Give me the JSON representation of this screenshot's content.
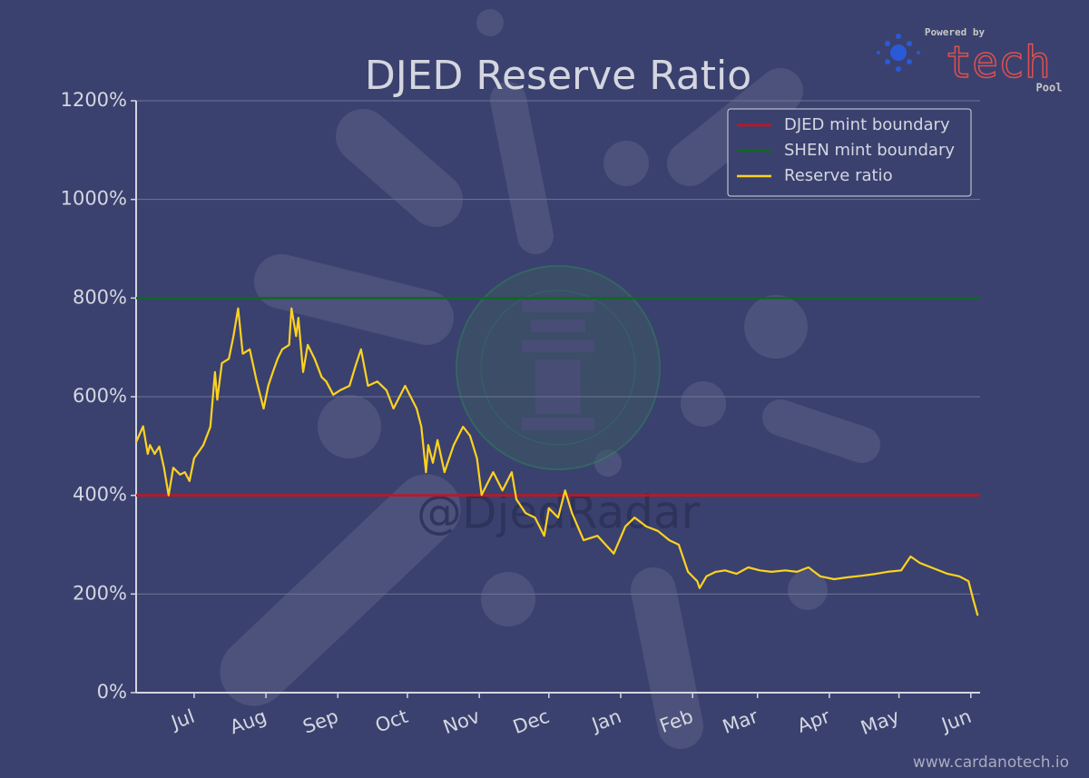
{
  "chart_data": {
    "type": "line",
    "title": "DJED Reserve Ratio",
    "xlim": [
      0,
      364
    ],
    "ylim": [
      0,
      1200
    ],
    "yticks": [
      {
        "value": 0,
        "label": "0%"
      },
      {
        "value": 200,
        "label": "200%"
      },
      {
        "value": 400,
        "label": "400%"
      },
      {
        "value": 600,
        "label": "600%"
      },
      {
        "value": 800,
        "label": "800%"
      },
      {
        "value": 1000,
        "label": "1000%"
      },
      {
        "value": 1200,
        "label": "1200%"
      }
    ],
    "xticks": [
      {
        "value": 25,
        "label": "Jul"
      },
      {
        "value": 56,
        "label": "Aug"
      },
      {
        "value": 87,
        "label": "Sep"
      },
      {
        "value": 117,
        "label": "Oct"
      },
      {
        "value": 148,
        "label": "Nov"
      },
      {
        "value": 178,
        "label": "Dec"
      },
      {
        "value": 209,
        "label": "Jan"
      },
      {
        "value": 240,
        "label": "Feb"
      },
      {
        "value": 268,
        "label": "Mar"
      },
      {
        "value": 299,
        "label": "Apr"
      },
      {
        "value": 329,
        "label": "May"
      },
      {
        "value": 360,
        "label": "Jun"
      }
    ],
    "grid": true,
    "legend": "upper right",
    "reference_lines": [
      {
        "name": "DJED mint boundary",
        "color": "#d0101a",
        "value": 400
      },
      {
        "name": "SHEN mint boundary",
        "color": "#0e6a1e",
        "value": 800
      }
    ],
    "series": [
      {
        "name": "Reserve ratio",
        "color": "#ffd21f",
        "x": [
          0,
          3,
          5,
          6,
          8,
          10,
          12,
          14,
          16,
          19,
          21,
          23,
          25,
          29,
          32,
          34,
          35,
          37,
          40,
          42,
          44,
          46,
          49,
          52,
          55,
          57,
          59,
          61,
          63,
          66,
          67,
          69,
          70,
          72,
          74,
          77,
          80,
          82,
          85,
          88,
          92,
          95,
          97,
          100,
          104,
          108,
          111,
          116,
          121,
          123,
          125,
          126,
          128,
          130,
          133,
          137,
          141,
          144,
          147,
          149,
          152,
          154,
          158,
          162,
          164,
          168,
          172,
          176,
          178,
          182,
          185,
          188,
          193,
          199,
          206,
          211,
          215,
          220,
          225,
          230,
          234,
          238,
          242,
          243,
          246,
          250,
          254,
          259,
          264,
          269,
          274,
          280,
          285,
          290,
          295,
          301,
          307,
          313,
          319,
          324,
          330,
          334,
          338,
          344,
          350,
          355,
          359,
          361,
          363
        ],
        "values": [
          508,
          540,
          484,
          502,
          484,
          499,
          456,
          400,
          456,
          442,
          447,
          429,
          475,
          502,
          539,
          650,
          594,
          668,
          677,
          723,
          779,
          687,
          696,
          631,
          576,
          622,
          650,
          677,
          696,
          705,
          779,
          723,
          760,
          650,
          705,
          677,
          640,
          631,
          604,
          613,
          622,
          668,
          696,
          622,
          631,
          613,
          576,
          622,
          576,
          539,
          447,
          502,
          466,
          512,
          447,
          502,
          539,
          521,
          475,
          401,
          429,
          447,
          410,
          447,
          392,
          364,
          355,
          318,
          374,
          355,
          410,
          364,
          309,
          318,
          282,
          337,
          355,
          337,
          328,
          309,
          300,
          245,
          226,
          212,
          236,
          245,
          248,
          241,
          254,
          248,
          245,
          248,
          245,
          254,
          236,
          230,
          234,
          237,
          241,
          245,
          248,
          276,
          263,
          252,
          241,
          236,
          226,
          190,
          156
        ]
      }
    ]
  },
  "watermark": "@DjedRadar",
  "branding": {
    "powered_by": "Powered by",
    "logo": "tech",
    "pool": "Pool",
    "url": "www.cardanotech.io"
  }
}
